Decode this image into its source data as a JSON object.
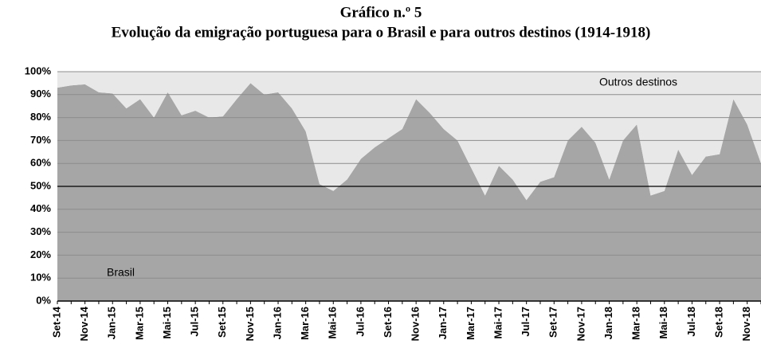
{
  "chart_data": {
    "type": "stacked_area",
    "title": "Gráfico n.º 5",
    "subtitle": "Evolução da emigração portuguesa para o Brasil e para outros destinos (1914-1918)",
    "categories": [
      "Set-14",
      null,
      "Nov-14",
      null,
      "Jan-15",
      null,
      "Mar-15",
      null,
      "Mai-15",
      null,
      "Jul-15",
      null,
      "Set-15",
      null,
      "Nov-15",
      null,
      "Jan-16",
      null,
      "Mar-16",
      null,
      "Mai-16",
      null,
      "Jul-16",
      null,
      "Set-16",
      null,
      "Nov-16",
      null,
      "Jan-17",
      null,
      "Mar-17",
      null,
      "Mai-17",
      null,
      "Jul-17",
      null,
      "Set-17",
      null,
      "Nov-17",
      null,
      "Jan-18",
      null,
      "Mar-18",
      null,
      "Mai-18",
      null,
      "Jul-18",
      null,
      "Set-18",
      null,
      "Nov-18",
      null
    ],
    "series": [
      {
        "name": "Brasil",
        "color": "#a6a6a6",
        "values": [
          93,
          94,
          94.5,
          91,
          90.5,
          84,
          88,
          80,
          91,
          81,
          83,
          80,
          80.5,
          88,
          95,
          90,
          91,
          84,
          74,
          51,
          48,
          53,
          62,
          67,
          71,
          75,
          88,
          82,
          75,
          70,
          58,
          46,
          59,
          53,
          44,
          52,
          54,
          70,
          76,
          69,
          53,
          70,
          77,
          46,
          48,
          66,
          55,
          63,
          64,
          88,
          77,
          60
        ]
      },
      {
        "name": "Outros destinos",
        "color": "#e8e8e8",
        "values": [
          7,
          6,
          5.5,
          9,
          9.5,
          16,
          12,
          20,
          9,
          19,
          17,
          20,
          19.5,
          12,
          5,
          10,
          9,
          16,
          26,
          49,
          52,
          47,
          38,
          33,
          29,
          25,
          12,
          18,
          25,
          30,
          42,
          54,
          41,
          47,
          56,
          48,
          46,
          30,
          24,
          31,
          47,
          30,
          23,
          54,
          52,
          34,
          45,
          37,
          36,
          12,
          23,
          40
        ]
      }
    ],
    "ylim": [
      0,
      100
    ],
    "yticks": [
      {
        "value": 0,
        "label": "0%"
      },
      {
        "value": 10,
        "label": "10%"
      },
      {
        "value": 20,
        "label": "20%"
      },
      {
        "value": 30,
        "label": "30%"
      },
      {
        "value": 40,
        "label": "40%"
      },
      {
        "value": 50,
        "label": "50%"
      },
      {
        "value": 60,
        "label": "60%"
      },
      {
        "value": 70,
        "label": "70%"
      },
      {
        "value": 80,
        "label": "80%"
      },
      {
        "value": 90,
        "label": "90%"
      },
      {
        "value": 100,
        "label": "100%"
      }
    ],
    "reference_line": 50,
    "grid": true
  }
}
